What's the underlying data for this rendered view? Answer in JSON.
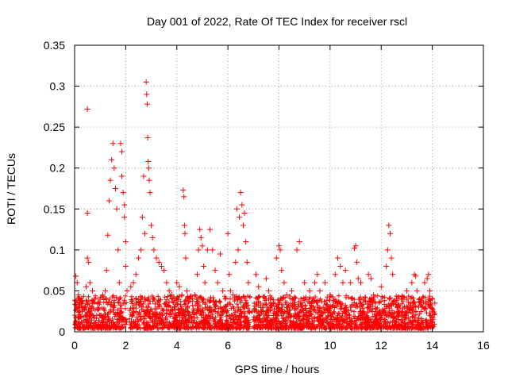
{
  "chart_data": {
    "type": "scatter",
    "title": "Day 001 of 2022, Rate Of TEC Index for receiver rscl",
    "xlabel": "GPS time / hours",
    "ylabel": "ROTI / TECUs",
    "xlim": [
      0,
      16
    ],
    "ylim": [
      0,
      0.35
    ],
    "x_ticks": [
      0,
      2,
      4,
      6,
      8,
      10,
      12,
      14,
      16
    ],
    "x_tick_labels": [
      "0",
      "2",
      "4",
      "6",
      "8",
      "10",
      "12",
      "14",
      "16"
    ],
    "y_ticks": [
      0,
      0.05,
      0.1,
      0.15,
      0.2,
      0.25,
      0.3,
      0.35
    ],
    "y_tick_labels": [
      "0",
      "0.05",
      "0.1",
      "0.15",
      "0.2",
      "0.25",
      "0.3",
      "0.35"
    ],
    "grid": true,
    "marker": "+",
    "marker_color": "#ff0000",
    "series": [
      {
        "name": "ROTI",
        "points": [
          [
            0.05,
            0.068
          ],
          [
            0.1,
            0.06
          ],
          [
            0.15,
            0.045
          ],
          [
            0.2,
            0.035
          ],
          [
            0.3,
            0.025
          ],
          [
            0.4,
            0.03
          ],
          [
            0.45,
            0.055
          ],
          [
            0.5,
            0.272
          ],
          [
            0.5,
            0.145
          ],
          [
            0.5,
            0.09
          ],
          [
            0.55,
            0.085
          ],
          [
            0.6,
            0.06
          ],
          [
            0.7,
            0.05
          ],
          [
            0.8,
            0.04
          ],
          [
            0.9,
            0.035
          ],
          [
            1.0,
            0.04
          ],
          [
            1.1,
            0.045
          ],
          [
            1.2,
            0.05
          ],
          [
            1.25,
            0.075
          ],
          [
            1.3,
            0.118
          ],
          [
            1.35,
            0.16
          ],
          [
            1.4,
            0.185
          ],
          [
            1.45,
            0.21
          ],
          [
            1.5,
            0.23
          ],
          [
            1.55,
            0.2
          ],
          [
            1.6,
            0.175
          ],
          [
            1.65,
            0.15
          ],
          [
            1.7,
            0.1
          ],
          [
            1.75,
            0.06
          ],
          [
            1.8,
            0.23
          ],
          [
            1.85,
            0.22
          ],
          [
            1.85,
            0.19
          ],
          [
            1.9,
            0.17
          ],
          [
            1.95,
            0.155
          ],
          [
            1.95,
            0.14
          ],
          [
            2.0,
            0.11
          ],
          [
            2.0,
            0.08
          ],
          [
            2.05,
            0.05
          ],
          [
            2.2,
            0.055
          ],
          [
            2.3,
            0.06
          ],
          [
            2.4,
            0.07
          ],
          [
            2.5,
            0.09
          ],
          [
            2.6,
            0.1
          ],
          [
            2.65,
            0.14
          ],
          [
            2.7,
            0.19
          ],
          [
            2.75,
            0.12
          ],
          [
            2.8,
            0.305
          ],
          [
            2.82,
            0.29
          ],
          [
            2.84,
            0.278
          ],
          [
            2.86,
            0.237
          ],
          [
            2.88,
            0.208
          ],
          [
            2.9,
            0.2
          ],
          [
            2.92,
            0.185
          ],
          [
            2.95,
            0.17
          ],
          [
            3.0,
            0.13
          ],
          [
            3.05,
            0.115
          ],
          [
            3.1,
            0.1
          ],
          [
            3.2,
            0.09
          ],
          [
            3.3,
            0.085
          ],
          [
            3.4,
            0.08
          ],
          [
            3.5,
            0.075
          ],
          [
            3.6,
            0.06
          ],
          [
            3.7,
            0.05
          ],
          [
            3.8,
            0.045
          ],
          [
            3.9,
            0.04
          ],
          [
            4.0,
            0.06
          ],
          [
            4.1,
            0.055
          ],
          [
            4.2,
            0.045
          ],
          [
            4.25,
            0.173
          ],
          [
            4.28,
            0.165
          ],
          [
            4.3,
            0.13
          ],
          [
            4.32,
            0.12
          ],
          [
            4.35,
            0.09
          ],
          [
            4.4,
            0.05
          ],
          [
            4.5,
            0.04
          ],
          [
            4.7,
            0.045
          ],
          [
            4.8,
            0.07
          ],
          [
            4.85,
            0.1
          ],
          [
            4.9,
            0.125
          ],
          [
            4.95,
            0.115
          ],
          [
            5.0,
            0.105
          ],
          [
            5.05,
            0.08
          ],
          [
            5.1,
            0.06
          ],
          [
            5.2,
            0.1
          ],
          [
            5.3,
            0.125
          ],
          [
            5.4,
            0.1
          ],
          [
            5.5,
            0.075
          ],
          [
            5.6,
            0.06
          ],
          [
            5.7,
            0.095
          ],
          [
            5.8,
            0.05
          ],
          [
            5.9,
            0.04
          ],
          [
            6.0,
            0.12
          ],
          [
            6.05,
            0.07
          ],
          [
            6.1,
            0.05
          ],
          [
            6.2,
            0.045
          ],
          [
            6.3,
            0.085
          ],
          [
            6.35,
            0.15
          ],
          [
            6.4,
            0.1
          ],
          [
            6.45,
            0.14
          ],
          [
            6.5,
            0.17
          ],
          [
            6.55,
            0.155
          ],
          [
            6.6,
            0.13
          ],
          [
            6.65,
            0.145
          ],
          [
            6.7,
            0.11
          ],
          [
            6.75,
            0.085
          ],
          [
            6.8,
            0.06
          ],
          [
            7.1,
            0.07
          ],
          [
            7.2,
            0.055
          ],
          [
            7.5,
            0.065
          ],
          [
            7.6,
            0.05
          ],
          [
            7.9,
            0.09
          ],
          [
            8.0,
            0.105
          ],
          [
            8.05,
            0.1
          ],
          [
            8.1,
            0.075
          ],
          [
            8.2,
            0.06
          ],
          [
            8.3,
            0.045
          ],
          [
            8.5,
            0.05
          ],
          [
            8.7,
            0.1
          ],
          [
            8.8,
            0.11
          ],
          [
            9.0,
            0.06
          ],
          [
            9.2,
            0.05
          ],
          [
            9.4,
            0.06
          ],
          [
            9.5,
            0.07
          ],
          [
            9.6,
            0.05
          ],
          [
            9.8,
            0.06
          ],
          [
            10.0,
            0.045
          ],
          [
            10.2,
            0.07
          ],
          [
            10.3,
            0.09
          ],
          [
            10.4,
            0.08
          ],
          [
            10.5,
            0.06
          ],
          [
            10.6,
            0.075
          ],
          [
            10.8,
            0.06
          ],
          [
            10.95,
            0.102
          ],
          [
            11.0,
            0.105
          ],
          [
            11.05,
            0.085
          ],
          [
            11.1,
            0.065
          ],
          [
            11.2,
            0.06
          ],
          [
            11.5,
            0.07
          ],
          [
            11.6,
            0.065
          ],
          [
            11.7,
            0.045
          ],
          [
            12.0,
            0.055
          ],
          [
            12.2,
            0.08
          ],
          [
            12.25,
            0.1
          ],
          [
            12.3,
            0.13
          ],
          [
            12.35,
            0.12
          ],
          [
            12.4,
            0.09
          ],
          [
            12.45,
            0.07
          ],
          [
            12.6,
            0.04
          ],
          [
            12.8,
            0.04
          ],
          [
            13.0,
            0.05
          ],
          [
            13.2,
            0.06
          ],
          [
            13.3,
            0.07
          ],
          [
            13.35,
            0.068
          ],
          [
            13.4,
            0.05
          ],
          [
            13.5,
            0.04
          ],
          [
            13.7,
            0.06
          ],
          [
            13.8,
            0.065
          ],
          [
            13.85,
            0.07
          ],
          [
            13.9,
            0.05
          ],
          [
            14.0,
            0.04
          ],
          [
            14.1,
            0.035
          ],
          [
            0.2,
            0.025
          ],
          [
            0.6,
            0.022
          ],
          [
            1.0,
            0.02
          ],
          [
            1.4,
            0.025
          ],
          [
            1.8,
            0.022
          ],
          [
            2.3,
            0.024
          ],
          [
            2.8,
            0.03
          ],
          [
            3.2,
            0.028
          ],
          [
            3.6,
            0.022
          ],
          [
            4.0,
            0.02
          ],
          [
            4.4,
            0.025
          ],
          [
            4.8,
            0.028
          ],
          [
            5.2,
            0.03
          ],
          [
            5.6,
            0.022
          ],
          [
            6.0,
            0.02
          ],
          [
            6.4,
            0.03
          ],
          [
            6.8,
            0.025
          ],
          [
            7.2,
            0.024
          ],
          [
            7.6,
            0.02
          ],
          [
            8.0,
            0.028
          ],
          [
            8.4,
            0.022
          ],
          [
            8.8,
            0.024
          ],
          [
            9.2,
            0.026
          ],
          [
            9.6,
            0.03
          ],
          [
            10.0,
            0.022
          ],
          [
            10.4,
            0.028
          ],
          [
            10.8,
            0.03
          ],
          [
            11.2,
            0.025
          ],
          [
            11.6,
            0.028
          ],
          [
            12.0,
            0.022
          ],
          [
            12.4,
            0.02
          ],
          [
            12.8,
            0.024
          ],
          [
            13.2,
            0.026
          ],
          [
            13.6,
            0.03
          ],
          [
            14.0,
            0.025
          ]
        ]
      }
    ]
  }
}
